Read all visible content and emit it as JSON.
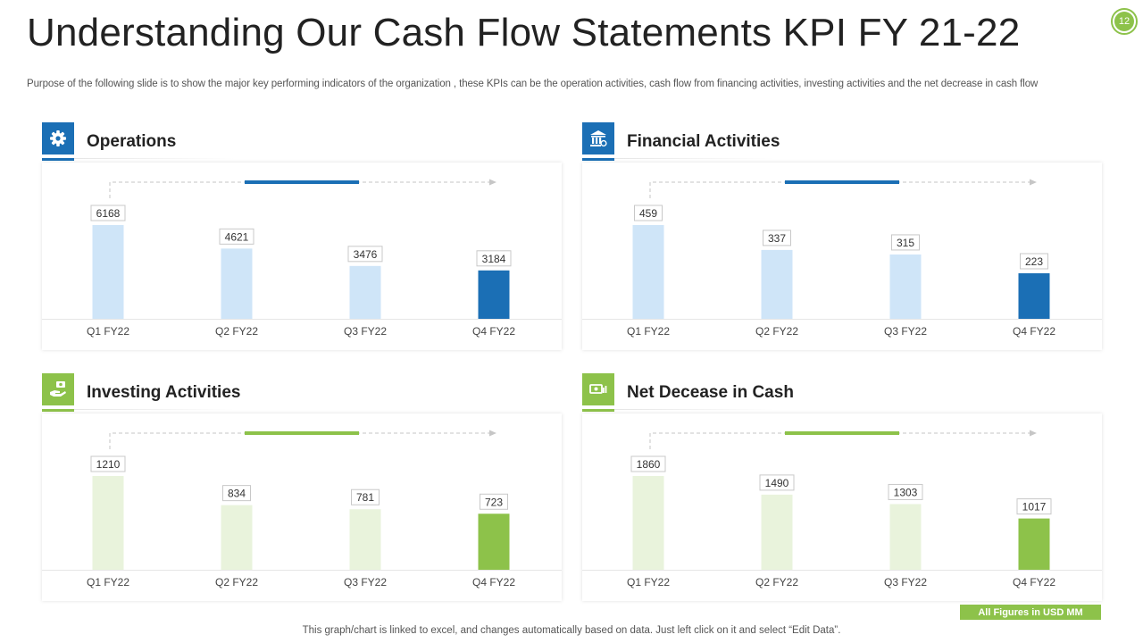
{
  "header": {
    "title": "Understanding Our Cash Flow Statements KPI FY 21-22",
    "subtitle": "Purpose of the following slide is to show the major key performing indicators of the organization , these KPIs can be the operation activities, cash flow from financing activities, investing activities and the net decrease in cash flow",
    "page_number": "12"
  },
  "colors": {
    "blue_accent": "#1b6fb5",
    "blue_light": "#cfe5f8",
    "green_accent": "#8dc24a",
    "green_light": "#e9f3dc"
  },
  "panels": [
    {
      "title": "Operations",
      "icon": "gear-icon",
      "theme": "blue"
    },
    {
      "title": "Financial Activities",
      "icon": "bank-icon",
      "theme": "blue"
    },
    {
      "title": "Investing Activities",
      "icon": "money-hand-icon",
      "theme": "green"
    },
    {
      "title": "Net Decease in Cash",
      "icon": "cash-icon",
      "theme": "green"
    }
  ],
  "chart_data": [
    {
      "type": "bar",
      "categories": [
        "Q1 FY22",
        "Q2 FY22",
        "Q3 FY22",
        "Q4 FY22"
      ],
      "values": [
        6168,
        4621,
        3476,
        3184
      ]
    },
    {
      "type": "bar",
      "categories": [
        "Q1 FY22",
        "Q2 FY22",
        "Q3 FY22",
        "Q4 FY22"
      ],
      "values": [
        459,
        337,
        315,
        223
      ]
    },
    {
      "type": "bar",
      "categories": [
        "Q1 FY22",
        "Q2 FY22",
        "Q3 FY22",
        "Q4 FY22"
      ],
      "values": [
        1210,
        834,
        781,
        723
      ]
    },
    {
      "type": "bar",
      "categories": [
        "Q1 FY22",
        "Q2 FY22",
        "Q3 FY22",
        "Q4 FY22"
      ],
      "values": [
        1860,
        1490,
        1303,
        1017
      ]
    }
  ],
  "footer": {
    "note": "This graph/chart is linked to excel,  and changes automatically based on data. Just left click on it and select “Edit Data”.",
    "figures_label": "All Figures in USD MM"
  }
}
